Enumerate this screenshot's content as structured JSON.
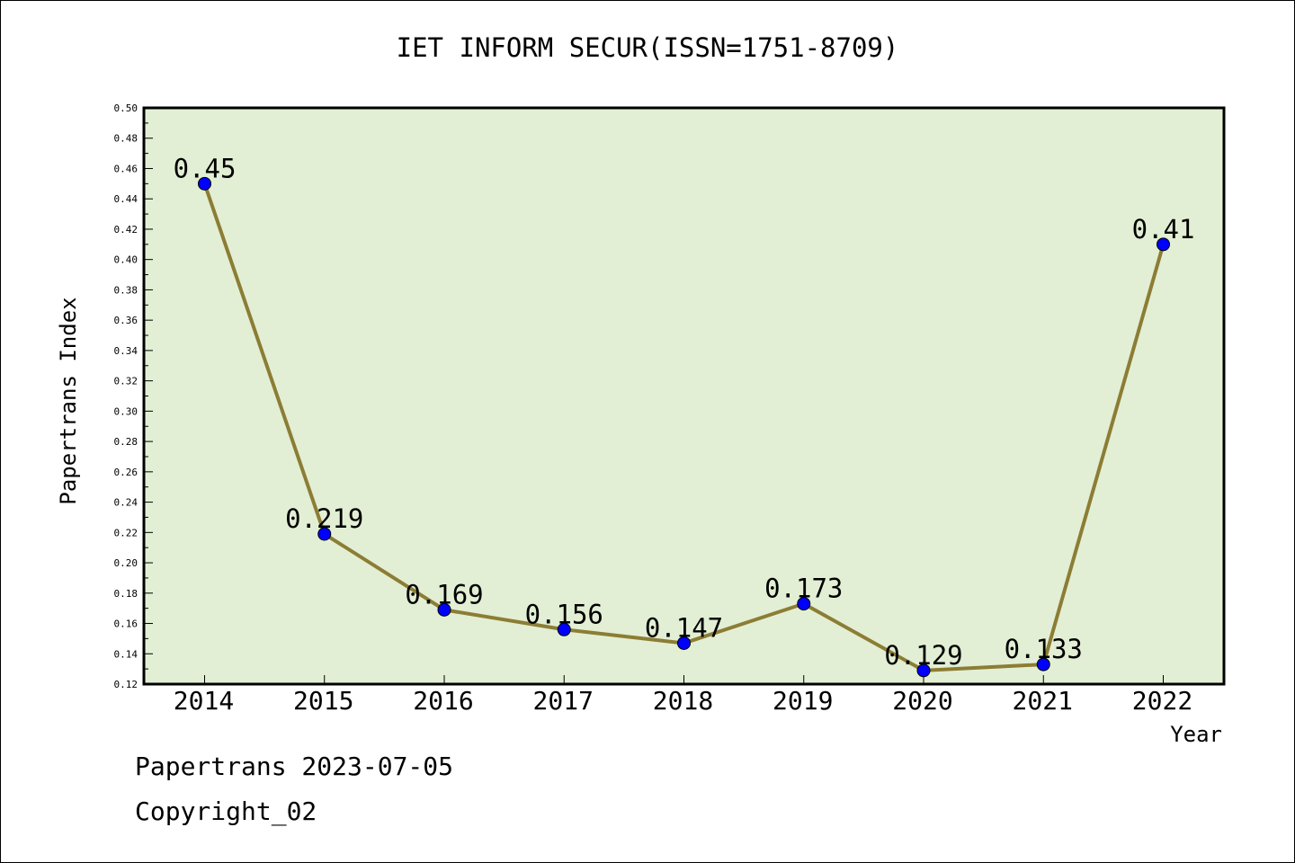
{
  "chart_data": {
    "type": "line",
    "title": "IET INFORM SECUR(ISSN=1751-8709)",
    "xlabel": "Year",
    "ylabel": "Papertrans Index",
    "categories": [
      "2014",
      "2015",
      "2016",
      "2017",
      "2018",
      "2019",
      "2020",
      "2021",
      "2022"
    ],
    "series": [
      {
        "values": [
          0.45,
          0.219,
          0.169,
          0.156,
          0.147,
          0.173,
          0.129,
          0.133,
          0.41
        ],
        "labels": [
          "0.45",
          "0.219",
          "0.169",
          "0.156",
          "0.147",
          "0.173",
          "0.129",
          "0.133",
          "0.41"
        ]
      }
    ],
    "ylim": [
      0.12,
      0.5
    ],
    "yticks": [
      "0.12",
      "0.14",
      "0.16",
      "0.18",
      "0.20",
      "0.22",
      "0.24",
      "0.26",
      "0.28",
      "0.30",
      "0.32",
      "0.34",
      "0.36",
      "0.38",
      "0.40",
      "0.42",
      "0.44",
      "0.46",
      "0.48",
      "0.50"
    ],
    "grid": false,
    "colors": {
      "plot_background": "#e2efd4",
      "line": "#8c7d35",
      "marker": "#0000ff"
    }
  },
  "footer": {
    "line1": "Papertrans 2023-07-05",
    "line2": "Copyright_02"
  }
}
